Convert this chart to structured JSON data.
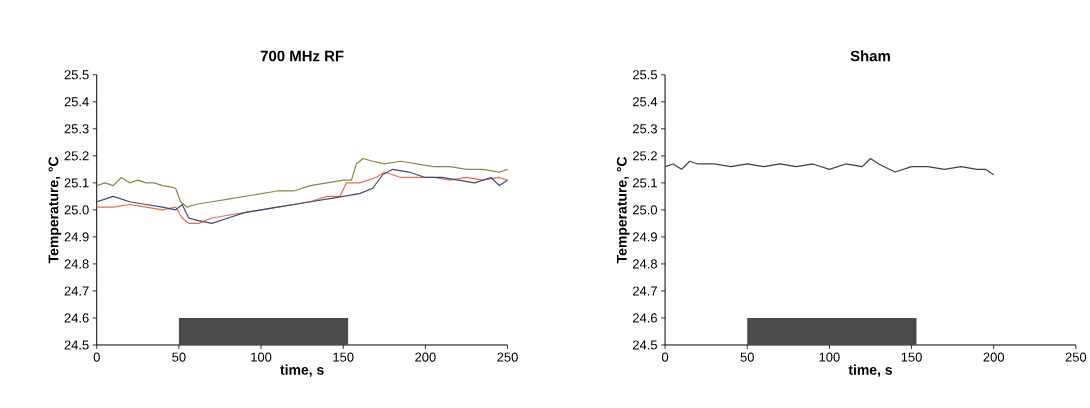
{
  "chart_data": [
    {
      "type": "line",
      "title": "700 MHz RF",
      "xlabel": "time, s",
      "ylabel": "Temperature, °C",
      "xlim": [
        0,
        250
      ],
      "xticks": [
        0,
        50,
        100,
        150,
        200,
        250
      ],
      "ylim": [
        24.5,
        25.5
      ],
      "yticks": [
        24.5,
        24.6,
        24.7,
        24.8,
        24.9,
        {
          "value": 25,
          "label": "25.0"
        },
        25.1,
        25.2,
        25.3,
        25.4,
        25.5
      ],
      "grid": false,
      "bands": [
        {
          "axis": "x",
          "from": 50,
          "to": 153,
          "color": "#4a4a4a"
        }
      ],
      "series": [
        {
          "color": "#8a8a3c",
          "x": [
            0,
            5,
            10,
            15,
            20,
            25,
            30,
            35,
            40,
            45,
            48,
            51,
            55,
            60,
            70,
            80,
            90,
            100,
            110,
            120,
            130,
            140,
            150,
            155,
            158,
            162,
            168,
            175,
            185,
            195,
            205,
            215,
            225,
            235,
            245,
            250
          ],
          "values": [
            25.09,
            25.1,
            25.09,
            25.12,
            25.1,
            25.11,
            25.1,
            25.1,
            25.09,
            25.085,
            25.08,
            25.03,
            25.01,
            25.02,
            25.03,
            25.04,
            25.05,
            25.06,
            25.07,
            25.07,
            25.09,
            25.1,
            25.11,
            25.11,
            25.17,
            25.19,
            25.18,
            25.17,
            25.18,
            25.17,
            25.16,
            25.16,
            25.15,
            25.15,
            25.14,
            25.15
          ]
        },
        {
          "color": "#e8704a",
          "x": [
            0,
            10,
            20,
            30,
            40,
            48,
            52,
            56,
            62,
            70,
            80,
            90,
            100,
            110,
            120,
            130,
            140,
            148,
            152,
            160,
            170,
            175,
            185,
            195,
            205,
            215,
            225,
            235,
            245,
            250
          ],
          "values": [
            25.01,
            25.01,
            25.02,
            25.01,
            25.0,
            25.01,
            24.97,
            24.95,
            24.95,
            24.97,
            24.98,
            24.99,
            25.0,
            25.01,
            25.02,
            25.03,
            25.05,
            25.05,
            25.1,
            25.1,
            25.12,
            25.14,
            25.12,
            25.12,
            25.12,
            25.11,
            25.12,
            25.11,
            25.12,
            25.11
          ]
        },
        {
          "color": "#3c4a78",
          "x": [
            0,
            5,
            10,
            20,
            30,
            40,
            48,
            52,
            56,
            62,
            70,
            80,
            90,
            100,
            110,
            120,
            130,
            140,
            150,
            160,
            168,
            174,
            180,
            190,
            200,
            210,
            220,
            230,
            240,
            245,
            250
          ],
          "values": [
            25.03,
            25.04,
            25.05,
            25.03,
            25.02,
            25.01,
            25.0,
            25.02,
            24.97,
            24.96,
            24.95,
            24.97,
            24.99,
            25.0,
            25.01,
            25.02,
            25.03,
            25.04,
            25.05,
            25.06,
            25.08,
            25.13,
            25.15,
            25.14,
            25.12,
            25.12,
            25.11,
            25.1,
            25.12,
            25.09,
            25.11
          ]
        }
      ]
    },
    {
      "type": "line",
      "title": "Sham",
      "xlabel": "time, s",
      "ylabel": "Temperature, °C",
      "xlim": [
        0,
        250
      ],
      "xticks": [
        0,
        50,
        100,
        150,
        200,
        250
      ],
      "ylim": [
        24.5,
        25.5
      ],
      "yticks": [
        24.5,
        24.6,
        24.7,
        24.8,
        24.9,
        {
          "value": 25,
          "label": "25.0"
        },
        25.1,
        25.2,
        25.3,
        25.4,
        25.5
      ],
      "grid": false,
      "bands": [
        {
          "axis": "x",
          "from": 50,
          "to": 153,
          "color": "#4a4a4a"
        }
      ],
      "series": [
        {
          "color": "#404040",
          "x": [
            0,
            5,
            10,
            15,
            20,
            30,
            40,
            50,
            60,
            70,
            80,
            90,
            100,
            110,
            120,
            125,
            130,
            140,
            150,
            160,
            170,
            180,
            190,
            195,
            200
          ],
          "values": [
            25.16,
            25.17,
            25.15,
            25.18,
            25.17,
            25.17,
            25.16,
            25.17,
            25.16,
            25.17,
            25.16,
            25.17,
            25.15,
            25.17,
            25.16,
            25.19,
            25.17,
            25.14,
            25.16,
            25.16,
            25.15,
            25.16,
            25.15,
            25.15,
            25.13
          ]
        }
      ]
    }
  ]
}
